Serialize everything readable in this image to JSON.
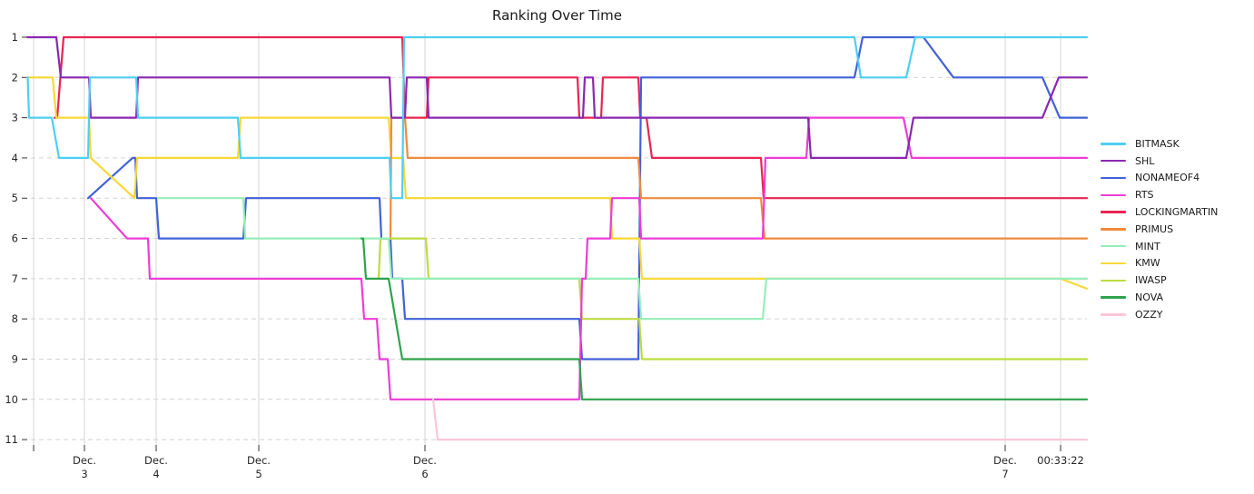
{
  "title": "Ranking Over Time",
  "chart_data": {
    "type": "line",
    "subtype": "bump-ranking-chart",
    "title": "Ranking Over Time",
    "xlabel": "",
    "ylabel": "",
    "y_axis": {
      "ranks": [
        "1",
        "2",
        "3",
        "4",
        "5",
        "6",
        "7",
        "8",
        "9",
        "10",
        "11"
      ],
      "inverted": true,
      "gridline_style": "dashed"
    },
    "x_axis": {
      "ticks": [
        {
          "x": 37,
          "label": ""
        },
        {
          "x": 93,
          "label": "Dec.\n3"
        },
        {
          "x": 172,
          "label": "Dec.\n4"
        },
        {
          "x": 285,
          "label": "Dec.\n5"
        },
        {
          "x": 468,
          "label": "Dec.\n6"
        },
        {
          "x": 1107,
          "label": "Dec.\n7"
        },
        {
          "x": 1168,
          "label": "00:33:22"
        }
      ],
      "gridline_style": "solid"
    },
    "legend_position": "right",
    "colors": {
      "grid_vertical": "#dcdcdc",
      "grid_horizontal": "#d4d4d4",
      "tick_text": "#262626"
    },
    "series": [
      {
        "name": "BITMASK",
        "color": "#4DCFF0",
        "final_rank": 1,
        "points": [
          [
            30,
            2
          ],
          [
            30.5,
            2
          ],
          [
            32,
            3
          ],
          [
            57,
            3
          ],
          [
            65,
            4
          ],
          [
            97,
            4
          ],
          [
            99,
            2
          ],
          [
            150,
            2
          ],
          [
            152,
            3
          ],
          [
            262,
            3
          ],
          [
            265,
            4
          ],
          [
            429,
            4
          ],
          [
            431,
            5
          ],
          [
            443,
            5
          ],
          [
            445,
            1
          ],
          [
            941,
            1
          ],
          [
            948,
            2
          ],
          [
            998,
            2
          ],
          [
            1008,
            1
          ],
          [
            1197,
            1
          ]
        ]
      },
      {
        "name": "SHL",
        "color": "#8B27B0",
        "final_rank": 2,
        "points": [
          [
            30,
            1
          ],
          [
            62,
            1
          ],
          [
            67,
            2
          ],
          [
            98,
            2
          ],
          [
            100,
            3
          ],
          [
            150,
            3
          ],
          [
            152,
            2
          ],
          [
            429,
            2
          ],
          [
            431,
            3
          ],
          [
            446,
            3
          ],
          [
            448,
            2
          ],
          [
            470,
            2
          ],
          [
            472,
            3
          ],
          [
            642,
            3
          ],
          [
            644,
            2
          ],
          [
            653,
            2
          ],
          [
            655,
            3
          ],
          [
            890,
            3
          ],
          [
            893,
            4
          ],
          [
            998,
            4
          ],
          [
            1006,
            3
          ],
          [
            1148,
            3
          ],
          [
            1166,
            2
          ],
          [
            1197,
            2
          ]
        ]
      },
      {
        "name": "NONAMEOF4",
        "color": "#4161D8",
        "final_rank": 3,
        "points": [
          [
            97,
            5
          ],
          [
            146,
            4
          ],
          [
            149,
            4
          ],
          [
            151,
            5
          ],
          [
            172,
            5
          ],
          [
            175,
            6
          ],
          [
            268,
            6
          ],
          [
            271,
            5
          ],
          [
            418,
            5
          ],
          [
            420,
            6
          ],
          [
            430,
            6
          ],
          [
            432,
            7
          ],
          [
            443,
            7
          ],
          [
            446,
            8
          ],
          [
            638,
            8
          ],
          [
            641,
            9
          ],
          [
            703,
            9
          ],
          [
            706,
            2
          ],
          [
            941,
            2
          ],
          [
            950,
            1
          ],
          [
            1017,
            1
          ],
          [
            1050,
            2
          ],
          [
            1148,
            2
          ],
          [
            1167,
            3
          ],
          [
            1197,
            3
          ]
        ]
      },
      {
        "name": "RTS",
        "color": "#ED3DD4",
        "final_rank": 4,
        "points": [
          [
            100,
            5
          ],
          [
            140,
            6
          ],
          [
            163,
            6
          ],
          [
            165,
            7
          ],
          [
            398,
            7
          ],
          [
            401,
            8
          ],
          [
            415,
            8
          ],
          [
            418,
            9
          ],
          [
            427,
            9
          ],
          [
            430,
            10
          ],
          [
            638,
            10
          ],
          [
            641,
            7
          ],
          [
            645,
            7
          ],
          [
            647,
            6
          ],
          [
            672,
            6
          ],
          [
            674,
            5
          ],
          [
            704,
            5
          ],
          [
            706,
            6
          ],
          [
            840,
            6
          ],
          [
            843,
            4
          ],
          [
            888,
            4
          ],
          [
            891,
            3
          ],
          [
            995,
            3
          ],
          [
            1004,
            4
          ],
          [
            1197,
            4
          ]
        ]
      },
      {
        "name": "LOCKINGMARTIN",
        "color": "#E82552",
        "final_rank": 5,
        "points": [
          [
            60,
            3
          ],
          [
            63,
            3
          ],
          [
            70,
            1
          ],
          [
            443,
            1
          ],
          [
            446,
            3
          ],
          [
            470,
            3
          ],
          [
            472,
            2
          ],
          [
            636,
            2
          ],
          [
            638,
            3
          ],
          [
            662,
            3
          ],
          [
            664,
            2
          ],
          [
            703,
            2
          ],
          [
            705,
            3
          ],
          [
            712,
            3
          ],
          [
            718,
            4
          ],
          [
            838,
            4
          ],
          [
            841,
            5
          ],
          [
            1197,
            5
          ]
        ]
      },
      {
        "name": "PRIMUS",
        "color": "#F08A3C",
        "final_rank": 6,
        "points": [
          [
            430,
            6
          ],
          [
            431,
            3
          ],
          [
            446,
            3
          ],
          [
            449,
            4
          ],
          [
            703,
            4
          ],
          [
            706,
            5
          ],
          [
            838,
            5
          ],
          [
            842,
            6
          ],
          [
            1197,
            6
          ]
        ]
      },
      {
        "name": "MINT",
        "color": "#97EDB8",
        "final_rank": 7,
        "points": [
          [
            174,
            5
          ],
          [
            268,
            5
          ],
          [
            270,
            6
          ],
          [
            428,
            6
          ],
          [
            431,
            7
          ],
          [
            703,
            7
          ],
          [
            706,
            8
          ],
          [
            840,
            8
          ],
          [
            844,
            7
          ],
          [
            1197,
            7
          ]
        ]
      },
      {
        "name": "KMW",
        "color": "#F7D837",
        "final_rank": 8,
        "points": [
          [
            30,
            2
          ],
          [
            58,
            2
          ],
          [
            62,
            3
          ],
          [
            98,
            3
          ],
          [
            100,
            4
          ],
          [
            148,
            5
          ],
          [
            151,
            4
          ],
          [
            262,
            4
          ],
          [
            265,
            3
          ],
          [
            428,
            3
          ],
          [
            431,
            4
          ],
          [
            444,
            4
          ],
          [
            447,
            5
          ],
          [
            672,
            5
          ],
          [
            674,
            6
          ],
          [
            704,
            6
          ],
          [
            707,
            7
          ],
          [
            842,
            7
          ],
          [
            1168,
            7
          ],
          [
            1197,
            7.25
          ]
        ]
      },
      {
        "name": "IWASP",
        "color": "#BCDC3F",
        "final_rank": 9,
        "points": [
          [
            415,
            7
          ],
          [
            417,
            7
          ],
          [
            419,
            6
          ],
          [
            469,
            6
          ],
          [
            472,
            7
          ],
          [
            638,
            7
          ],
          [
            641,
            8
          ],
          [
            704,
            8
          ],
          [
            707,
            9
          ],
          [
            1197,
            9
          ]
        ]
      },
      {
        "name": "NOVA",
        "color": "#2FA34C",
        "final_rank": 10,
        "points": [
          [
            398,
            6
          ],
          [
            400,
            6
          ],
          [
            403,
            7
          ],
          [
            428,
            7
          ],
          [
            443,
            9
          ],
          [
            638,
            9
          ],
          [
            641,
            10
          ],
          [
            1197,
            10
          ]
        ]
      },
      {
        "name": "OZZY",
        "color": "#FAC7D7",
        "final_rank": 11,
        "points": [
          [
            477,
            10
          ],
          [
            482,
            11
          ],
          [
            1197,
            11
          ]
        ]
      }
    ],
    "draw_order": [
      "LOCKINGMARTIN",
      "NONAMEOF4",
      "KMW",
      "PRIMUS",
      "IWASP",
      "MINT",
      "RTS",
      "SHL",
      "BITMASK",
      "NOVA",
      "OZZY"
    ],
    "legend": [
      "BITMASK",
      "SHL",
      "NONAMEOF4",
      "RTS",
      "LOCKINGMARTIN",
      "PRIMUS",
      "MINT",
      "KMW",
      "IWASP",
      "NOVA",
      "OZZY"
    ]
  }
}
